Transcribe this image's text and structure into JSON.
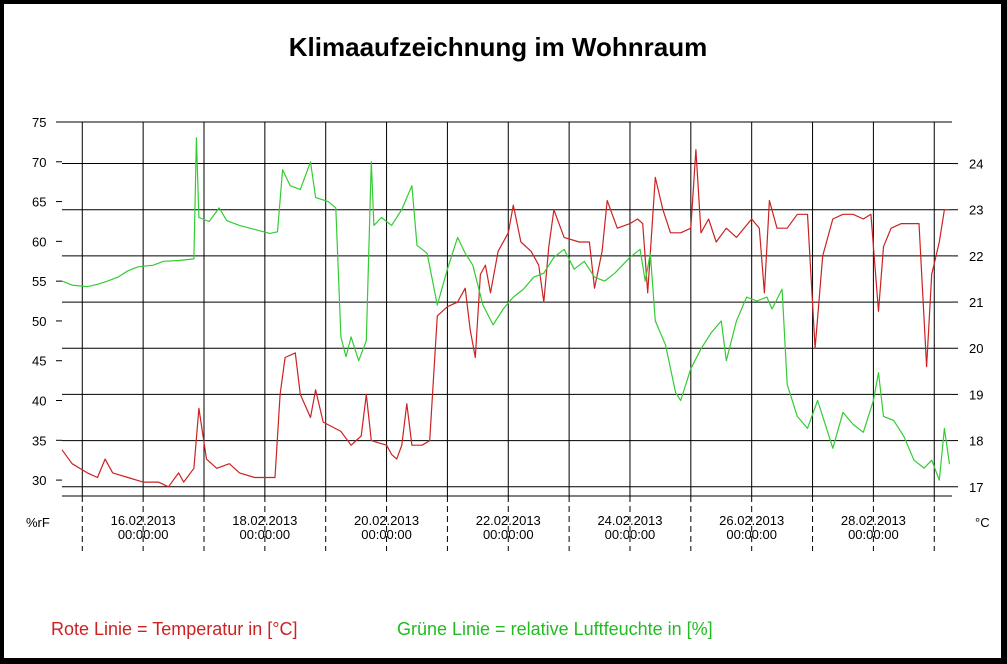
{
  "chart_data": {
    "type": "line",
    "title": "Klimaaufzeichnung im Wohnraum",
    "y_left": {
      "unit": "%rF",
      "ticks": [
        30,
        35,
        40,
        45,
        50,
        55,
        60,
        65,
        70,
        75
      ],
      "range": [
        28,
        75
      ]
    },
    "y_right": {
      "unit": "°C",
      "ticks": [
        17,
        18,
        19,
        20,
        21,
        22,
        23,
        24
      ],
      "range": [
        16.8,
        24.9
      ]
    },
    "x": {
      "type": "date",
      "range": [
        "2013-02-14T16:00",
        "2013-03-01T07:00"
      ],
      "tick_labels": [
        {
          "date": "16.02.2013",
          "time": "00:00:00",
          "at": "2013-02-16T00:00"
        },
        {
          "date": "18.02.2013",
          "time": "00:00:00",
          "at": "2013-02-18T00:00"
        },
        {
          "date": "20.02.2013",
          "time": "00:00:00",
          "at": "2013-02-20T00:00"
        },
        {
          "date": "22.02.2013",
          "time": "00:00:00",
          "at": "2013-02-22T00:00"
        },
        {
          "date": "24.02.2013",
          "time": "00:00:00",
          "at": "2013-02-24T00:00"
        },
        {
          "date": "26.02.2013",
          "time": "00:00:00",
          "at": "2013-02-26T00:00"
        },
        {
          "date": "28.02.2013",
          "time": "00:00:00",
          "at": "2013-02-28T00:00"
        }
      ],
      "gridlines_at": [
        "2013-02-15T00:00",
        "2013-02-16T00:00",
        "2013-02-17T00:00",
        "2013-02-18T00:00",
        "2013-02-19T00:00",
        "2013-02-20T00:00",
        "2013-02-21T00:00",
        "2013-02-22T00:00",
        "2013-02-23T00:00",
        "2013-02-24T00:00",
        "2013-02-25T00:00",
        "2013-02-26T00:00",
        "2013-02-27T00:00",
        "2013-02-28T00:00",
        "2013-03-01T00:00"
      ]
    },
    "grid": true,
    "series": [
      {
        "axis": "right",
        "color": "#cc2222",
        "points": [
          [
            "2013-02-14T16:00",
            17.8
          ],
          [
            "2013-02-14T20:00",
            17.5
          ],
          [
            "2013-02-15T02:00",
            17.3
          ],
          [
            "2013-02-15T06:00",
            17.2
          ],
          [
            "2013-02-15T09:00",
            17.6
          ],
          [
            "2013-02-15T12:00",
            17.3
          ],
          [
            "2013-02-15T18:00",
            17.2
          ],
          [
            "2013-02-16T00:00",
            17.1
          ],
          [
            "2013-02-16T06:00",
            17.1
          ],
          [
            "2013-02-16T10:00",
            17.0
          ],
          [
            "2013-02-16T14:00",
            17.3
          ],
          [
            "2013-02-16T16:00",
            17.1
          ],
          [
            "2013-02-16T20:00",
            17.4
          ],
          [
            "2013-02-16T22:00",
            18.7
          ],
          [
            "2013-02-17T01:00",
            17.6
          ],
          [
            "2013-02-17T05:00",
            17.4
          ],
          [
            "2013-02-17T10:00",
            17.5
          ],
          [
            "2013-02-17T14:00",
            17.3
          ],
          [
            "2013-02-17T20:00",
            17.2
          ],
          [
            "2013-02-18T02:00",
            17.2
          ],
          [
            "2013-02-18T04:00",
            17.2
          ],
          [
            "2013-02-18T06:00",
            19.0
          ],
          [
            "2013-02-18T08:00",
            19.8
          ],
          [
            "2013-02-18T12:00",
            19.9
          ],
          [
            "2013-02-18T14:00",
            19.0
          ],
          [
            "2013-02-18T18:00",
            18.5
          ],
          [
            "2013-02-18T20:00",
            19.1
          ],
          [
            "2013-02-18T23:00",
            18.4
          ],
          [
            "2013-02-19T06:00",
            18.2
          ],
          [
            "2013-02-19T10:00",
            17.9
          ],
          [
            "2013-02-19T14:00",
            18.1
          ],
          [
            "2013-02-19T16:00",
            19.0
          ],
          [
            "2013-02-19T18:00",
            18.0
          ],
          [
            "2013-02-20T00:00",
            17.9
          ],
          [
            "2013-02-20T02:00",
            17.7
          ],
          [
            "2013-02-20T04:00",
            17.6
          ],
          [
            "2013-02-20T06:00",
            17.9
          ],
          [
            "2013-02-20T08:00",
            18.8
          ],
          [
            "2013-02-20T10:00",
            17.9
          ],
          [
            "2013-02-20T14:00",
            17.9
          ],
          [
            "2013-02-20T17:00",
            18.0
          ],
          [
            "2013-02-20T20:00",
            20.7
          ],
          [
            "2013-02-21T00:00",
            20.9
          ],
          [
            "2013-02-21T04:00",
            21.0
          ],
          [
            "2013-02-21T07:00",
            21.3
          ],
          [
            "2013-02-21T09:00",
            20.4
          ],
          [
            "2013-02-21T11:00",
            19.8
          ],
          [
            "2013-02-21T13:00",
            21.6
          ],
          [
            "2013-02-21T15:00",
            21.8
          ],
          [
            "2013-02-21T17:00",
            21.2
          ],
          [
            "2013-02-21T20:00",
            22.1
          ],
          [
            "2013-02-22T00:00",
            22.5
          ],
          [
            "2013-02-22T02:00",
            23.1
          ],
          [
            "2013-02-22T05:00",
            22.3
          ],
          [
            "2013-02-22T09:00",
            22.1
          ],
          [
            "2013-02-22T12:00",
            21.8
          ],
          [
            "2013-02-22T14:00",
            21.0
          ],
          [
            "2013-02-22T16:00",
            22.2
          ],
          [
            "2013-02-22T18:00",
            23.0
          ],
          [
            "2013-02-22T22:00",
            22.4
          ],
          [
            "2013-02-23T04:00",
            22.3
          ],
          [
            "2013-02-23T08:00",
            22.3
          ],
          [
            "2013-02-23T10:00",
            21.3
          ],
          [
            "2013-02-23T13:00",
            22.1
          ],
          [
            "2013-02-23T15:00",
            23.2
          ],
          [
            "2013-02-23T19:00",
            22.6
          ],
          [
            "2013-02-24T00:00",
            22.7
          ],
          [
            "2013-02-24T03:00",
            22.8
          ],
          [
            "2013-02-24T05:00",
            22.7
          ],
          [
            "2013-02-24T07:00",
            21.2
          ],
          [
            "2013-02-24T10:00",
            23.7
          ],
          [
            "2013-02-24T13:00",
            23.0
          ],
          [
            "2013-02-24T16:00",
            22.5
          ],
          [
            "2013-02-24T20:00",
            22.5
          ],
          [
            "2013-02-25T00:00",
            22.6
          ],
          [
            "2013-02-25T02:00",
            24.3
          ],
          [
            "2013-02-25T04:00",
            22.5
          ],
          [
            "2013-02-25T07:00",
            22.8
          ],
          [
            "2013-02-25T10:00",
            22.3
          ],
          [
            "2013-02-25T14:00",
            22.6
          ],
          [
            "2013-02-25T18:00",
            22.4
          ],
          [
            "2013-02-26T00:00",
            22.8
          ],
          [
            "2013-02-26T03:00",
            22.6
          ],
          [
            "2013-02-26T05:00",
            21.2
          ],
          [
            "2013-02-26T07:00",
            23.2
          ],
          [
            "2013-02-26T10:00",
            22.6
          ],
          [
            "2013-02-26T14:00",
            22.6
          ],
          [
            "2013-02-26T18:00",
            22.9
          ],
          [
            "2013-02-26T22:00",
            22.9
          ],
          [
            "2013-02-27T01:00",
            20.0
          ],
          [
            "2013-02-27T04:00",
            22.0
          ],
          [
            "2013-02-27T08:00",
            22.8
          ],
          [
            "2013-02-27T12:00",
            22.9
          ],
          [
            "2013-02-27T16:00",
            22.9
          ],
          [
            "2013-02-27T20:00",
            22.8
          ],
          [
            "2013-02-27T23:00",
            22.9
          ],
          [
            "2013-02-28T02:00",
            20.8
          ],
          [
            "2013-02-28T04:00",
            22.2
          ],
          [
            "2013-02-28T07:00",
            22.6
          ],
          [
            "2013-02-28T11:00",
            22.7
          ],
          [
            "2013-02-28T15:00",
            22.7
          ],
          [
            "2013-02-28T18:00",
            22.7
          ],
          [
            "2013-02-28T21:00",
            19.6
          ],
          [
            "2013-02-28T23:00",
            21.6
          ],
          [
            "2013-03-01T02:00",
            22.3
          ],
          [
            "2013-03-01T04:00",
            23.0
          ],
          [
            "2013-03-01T06:00",
            23.0
          ]
        ]
      },
      {
        "axis": "left",
        "color": "#33cc33",
        "points": [
          [
            "2013-02-14T16:00",
            55.0
          ],
          [
            "2013-02-14T20:00",
            54.5
          ],
          [
            "2013-02-15T02:00",
            54.3
          ],
          [
            "2013-02-15T06:00",
            54.6
          ],
          [
            "2013-02-15T10:00",
            55.0
          ],
          [
            "2013-02-15T14:00",
            55.5
          ],
          [
            "2013-02-15T18:00",
            56.3
          ],
          [
            "2013-02-15T22:00",
            56.8
          ],
          [
            "2013-02-16T04:00",
            57.0
          ],
          [
            "2013-02-16T08:00",
            57.5
          ],
          [
            "2013-02-16T14:00",
            57.6
          ],
          [
            "2013-02-16T20:00",
            57.8
          ],
          [
            "2013-02-16T21:00",
            73.0
          ],
          [
            "2013-02-16T22:00",
            63.0
          ],
          [
            "2013-02-17T02:00",
            62.5
          ],
          [
            "2013-02-17T06:00",
            64.2
          ],
          [
            "2013-02-17T09:00",
            62.6
          ],
          [
            "2013-02-17T14:00",
            62.0
          ],
          [
            "2013-02-17T20:00",
            61.5
          ],
          [
            "2013-02-18T02:00",
            61.0
          ],
          [
            "2013-02-18T05:00",
            61.2
          ],
          [
            "2013-02-18T07:00",
            69.0
          ],
          [
            "2013-02-18T10:00",
            67.0
          ],
          [
            "2013-02-18T14:00",
            66.5
          ],
          [
            "2013-02-18T18:00",
            70.0
          ],
          [
            "2013-02-18T20:00",
            65.5
          ],
          [
            "2013-02-19T01:00",
            65.0
          ],
          [
            "2013-02-19T04:00",
            64.2
          ],
          [
            "2013-02-19T06:00",
            48.0
          ],
          [
            "2013-02-19T08:00",
            45.5
          ],
          [
            "2013-02-19T10:00",
            48.0
          ],
          [
            "2013-02-19T13:00",
            45.0
          ],
          [
            "2013-02-19T16:00",
            47.5
          ],
          [
            "2013-02-19T18:00",
            70.0
          ],
          [
            "2013-02-19T19:00",
            62.0
          ],
          [
            "2013-02-19T22:00",
            63.0
          ],
          [
            "2013-02-20T02:00",
            62.0
          ],
          [
            "2013-02-20T06:00",
            64.0
          ],
          [
            "2013-02-20T10:00",
            67.0
          ],
          [
            "2013-02-20T12:00",
            59.5
          ],
          [
            "2013-02-20T16:00",
            58.5
          ],
          [
            "2013-02-20T20:00",
            52.0
          ],
          [
            "2013-02-21T00:00",
            56.5
          ],
          [
            "2013-02-21T04:00",
            60.5
          ],
          [
            "2013-02-21T07:00",
            58.5
          ],
          [
            "2013-02-21T10:00",
            57.0
          ],
          [
            "2013-02-21T14:00",
            52.0
          ],
          [
            "2013-02-21T18:00",
            49.5
          ],
          [
            "2013-02-21T22:00",
            51.5
          ],
          [
            "2013-02-22T02:00",
            53.0
          ],
          [
            "2013-02-22T06:00",
            54.0
          ],
          [
            "2013-02-22T10:00",
            55.5
          ],
          [
            "2013-02-22T14:00",
            56.0
          ],
          [
            "2013-02-22T18:00",
            58.0
          ],
          [
            "2013-02-22T22:00",
            59.0
          ],
          [
            "2013-02-23T02:00",
            56.5
          ],
          [
            "2013-02-23T06:00",
            57.5
          ],
          [
            "2013-02-23T10:00",
            55.5
          ],
          [
            "2013-02-23T14:00",
            55.0
          ],
          [
            "2013-02-23T18:00",
            56.0
          ],
          [
            "2013-02-24T00:00",
            58.0
          ],
          [
            "2013-02-24T04:00",
            59.0
          ],
          [
            "2013-02-24T06:00",
            55.0
          ],
          [
            "2013-02-24T08:00",
            58.5
          ],
          [
            "2013-02-24T10:00",
            50.0
          ],
          [
            "2013-02-24T14:00",
            47.0
          ],
          [
            "2013-02-24T18:00",
            41.0
          ],
          [
            "2013-02-24T20:00",
            40.0
          ],
          [
            "2013-02-25T00:00",
            44.0
          ],
          [
            "2013-02-25T04:00",
            46.5
          ],
          [
            "2013-02-25T08:00",
            48.5
          ],
          [
            "2013-02-25T12:00",
            50.0
          ],
          [
            "2013-02-25T14:00",
            45.0
          ],
          [
            "2013-02-25T18:00",
            50.0
          ],
          [
            "2013-02-25T22:00",
            53.0
          ],
          [
            "2013-02-26T02:00",
            52.5
          ],
          [
            "2013-02-26T06:00",
            53.0
          ],
          [
            "2013-02-26T08:00",
            51.5
          ],
          [
            "2013-02-26T12:00",
            54.0
          ],
          [
            "2013-02-26T14:00",
            42.0
          ],
          [
            "2013-02-26T18:00",
            38.0
          ],
          [
            "2013-02-26T22:00",
            36.5
          ],
          [
            "2013-02-27T02:00",
            40.0
          ],
          [
            "2013-02-27T06:00",
            36.0
          ],
          [
            "2013-02-27T08:00",
            34.0
          ],
          [
            "2013-02-27T12:00",
            38.5
          ],
          [
            "2013-02-27T16:00",
            37.0
          ],
          [
            "2013-02-27T20:00",
            36.0
          ],
          [
            "2013-02-28T00:00",
            40.0
          ],
          [
            "2013-02-28T02:00",
            43.5
          ],
          [
            "2013-02-28T04:00",
            38.0
          ],
          [
            "2013-02-28T08:00",
            37.5
          ],
          [
            "2013-02-28T12:00",
            35.5
          ],
          [
            "2013-02-28T16:00",
            32.5
          ],
          [
            "2013-02-28T20:00",
            31.5
          ],
          [
            "2013-02-28T23:00",
            32.5
          ],
          [
            "2013-03-01T02:00",
            30.0
          ],
          [
            "2013-03-01T04:00",
            36.5
          ],
          [
            "2013-03-01T06:00",
            32.0
          ]
        ]
      }
    ],
    "legend": {
      "position": "bottom",
      "red_text": "Rote Linie = Temperatur in [°C]",
      "green_text": "Grüne Linie = relative Luftfeuchte in [%]"
    }
  }
}
